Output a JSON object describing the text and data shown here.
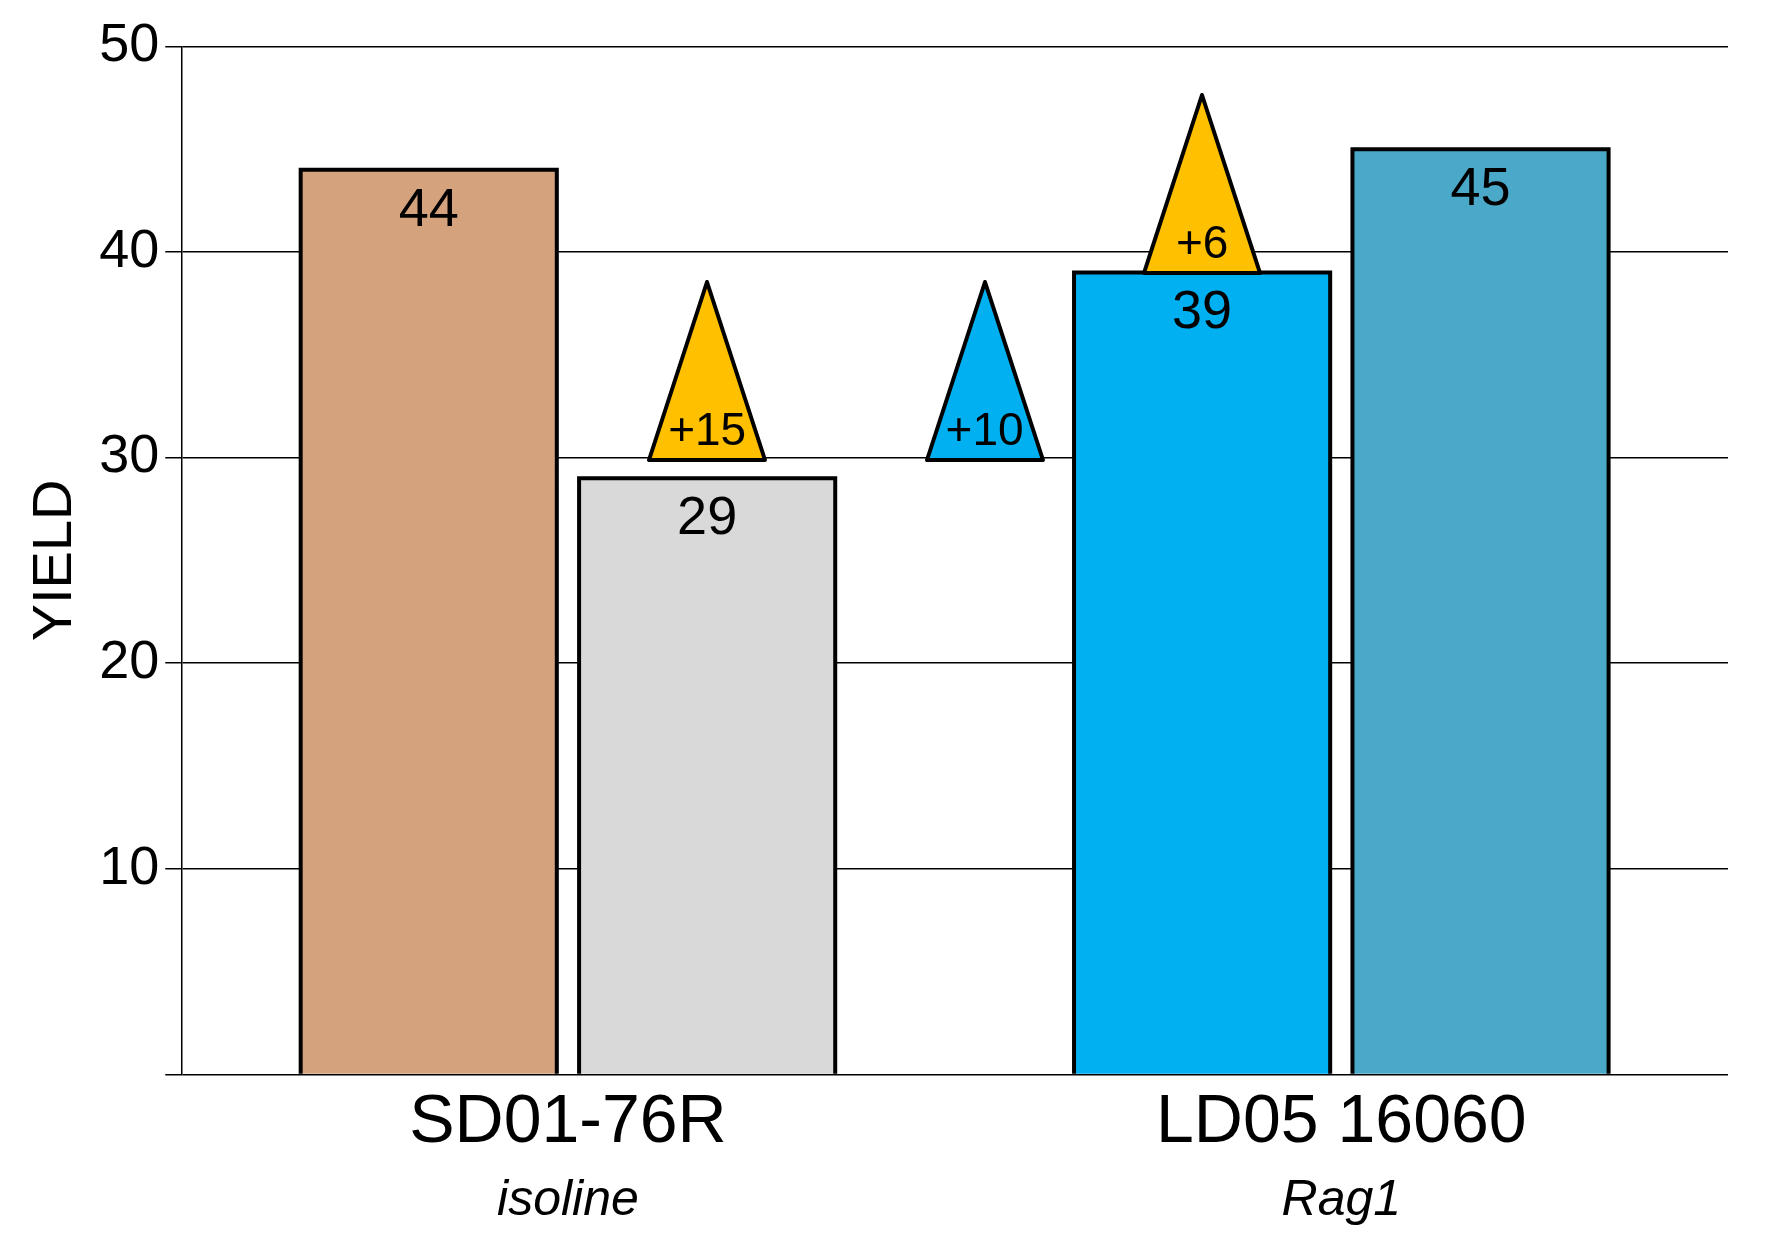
{
  "chart_data": {
    "type": "bar",
    "ylabel": "YIELD",
    "categories": [
      "SD01-76R",
      "LD05 16060"
    ],
    "series": [
      {
        "colors": [
          "#d4a27c",
          "#00b0f0"
        ],
        "values": [
          44,
          39
        ]
      },
      {
        "colors": [
          "#d9d9d9",
          "#4aa8c8"
        ],
        "values": [
          29,
          45
        ]
      }
    ],
    "ylim": [
      0,
      50
    ],
    "yticks": [
      {
        "value": 0,
        "label": null
      },
      10,
      20,
      30,
      40,
      50
    ],
    "grid": "y",
    "legend": false,
    "data_labels": true,
    "annotations": [
      "isoline",
      "Rag1",
      "+15",
      "+10",
      "+6"
    ]
  }
}
